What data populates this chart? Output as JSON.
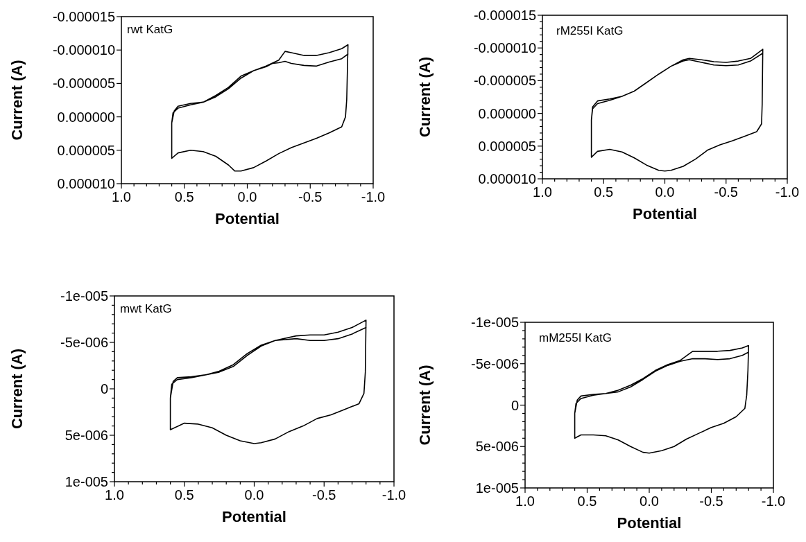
{
  "chart_data": [
    {
      "type": "line",
      "xlabel": "Potential",
      "ylabel": "Current (A)",
      "annotations": [
        "rwt KatG"
      ],
      "xlim": [
        1.0,
        -1.0
      ],
      "ylim": [
        1e-05,
        -1.5e-05
      ],
      "xticks": [
        {
          "value": 1.0,
          "label": "1.0"
        },
        {
          "value": 0.9,
          "label": null
        },
        {
          "value": 0.8,
          "label": null
        },
        {
          "value": 0.7,
          "label": null
        },
        {
          "value": 0.6,
          "label": null
        },
        {
          "value": 0.5,
          "label": "0.5"
        },
        {
          "value": 0.4,
          "label": null
        },
        {
          "value": 0.3,
          "label": null
        },
        {
          "value": 0.2,
          "label": null
        },
        {
          "value": 0.1,
          "label": null
        },
        {
          "value": 0.0,
          "label": "0.0"
        },
        {
          "value": -0.1,
          "label": null
        },
        {
          "value": -0.2,
          "label": null
        },
        {
          "value": -0.3,
          "label": null
        },
        {
          "value": -0.4,
          "label": null
        },
        {
          "value": -0.5,
          "label": "-0.5"
        },
        {
          "value": -0.6,
          "label": null
        },
        {
          "value": -0.7,
          "label": null
        },
        {
          "value": -0.8,
          "label": null
        },
        {
          "value": -0.9,
          "label": null
        },
        {
          "value": -1.0,
          "label": "-1.0"
        }
      ],
      "yticks": [
        {
          "value": -1.5e-05,
          "label": "-0.000015"
        },
        {
          "value": -1e-05,
          "label": "-0.000010"
        },
        {
          "value": -5e-06,
          "label": "-0.000005"
        },
        {
          "value": 0,
          "label": "0.000000"
        },
        {
          "value": 5e-06,
          "label": "0.000005"
        },
        {
          "value": 1e-05,
          "label": "0.000010"
        }
      ],
      "series": [
        {
          "color": "#000000",
          "x": [
            0.6,
            0.59,
            0.55,
            0.45,
            0.35,
            0.25,
            0.15,
            0.05,
            -0.05,
            -0.15,
            -0.25,
            -0.3,
            -0.35,
            -0.45,
            -0.55,
            -0.65,
            -0.75,
            -0.8,
            -0.79,
            -0.78,
            -0.75,
            -0.65,
            -0.55,
            -0.45,
            -0.35,
            -0.25,
            -0.15,
            -0.05,
            0.05,
            0.1,
            0.15,
            0.25,
            0.35,
            0.45,
            0.55,
            0.6,
            0.6,
            0.58,
            0.55,
            0.45,
            0.35,
            0.25,
            0.15,
            0.05,
            -0.05,
            -0.15,
            -0.2,
            -0.25,
            -0.3,
            -0.35,
            -0.45,
            -0.55,
            -0.65,
            -0.75,
            -0.8
          ],
          "values": [
            9e-07,
            -6e-07,
            -1.3e-06,
            -1.8e-06,
            -2.2e-06,
            -3.2e-06,
            -4.4e-06,
            -6.1e-06,
            -6.9e-06,
            -7.6e-06,
            -8.5e-06,
            -9.8e-06,
            -9.6e-06,
            -9.2e-06,
            -9.2e-06,
            -9.6e-06,
            -1.02e-05,
            -1.08e-05,
            -2.6e-06,
            0,
            1.5e-06,
            2.4e-06,
            3.2e-06,
            3.9e-06,
            4.6e-06,
            5.5e-06,
            6.6e-06,
            7.6e-06,
            8.1e-06,
            8.1e-06,
            7.2e-06,
            5.9e-06,
            5.2e-06,
            5e-06,
            5.4e-06,
            6.2e-06,
            9e-07,
            -9e-07,
            -1.6e-06,
            -2e-06,
            -2.2e-06,
            -3e-06,
            -4.2e-06,
            -5.8e-06,
            -6.9e-06,
            -7.5e-06,
            -8e-06,
            -8.1e-06,
            -8.3e-06,
            -8e-06,
            -7.7e-06,
            -7.6e-06,
            -8.2e-06,
            -8.7e-06,
            -9.4e-06
          ]
        }
      ]
    },
    {
      "type": "line",
      "xlabel": "Potential",
      "ylabel": "Current (A)",
      "annotations": [
        "rM255I KatG"
      ],
      "xlim": [
        1.0,
        -1.0
      ],
      "ylim": [
        1e-05,
        -1.5e-05
      ],
      "xticks": [
        {
          "value": 1.0,
          "label": "1.0"
        },
        {
          "value": 0.9,
          "label": null
        },
        {
          "value": 0.8,
          "label": null
        },
        {
          "value": 0.7,
          "label": null
        },
        {
          "value": 0.6,
          "label": null
        },
        {
          "value": 0.5,
          "label": "0.5"
        },
        {
          "value": 0.4,
          "label": null
        },
        {
          "value": 0.3,
          "label": null
        },
        {
          "value": 0.2,
          "label": null
        },
        {
          "value": 0.1,
          "label": null
        },
        {
          "value": 0.0,
          "label": "0.0"
        },
        {
          "value": -0.1,
          "label": null
        },
        {
          "value": -0.2,
          "label": null
        },
        {
          "value": -0.3,
          "label": null
        },
        {
          "value": -0.4,
          "label": null
        },
        {
          "value": -0.5,
          "label": "-0.5"
        },
        {
          "value": -0.6,
          "label": null
        },
        {
          "value": -0.7,
          "label": null
        },
        {
          "value": -0.8,
          "label": null
        },
        {
          "value": -0.9,
          "label": null
        },
        {
          "value": -1.0,
          "label": "-1.0"
        }
      ],
      "yticks": [
        {
          "value": -1.5e-05,
          "label": "-0.000015"
        },
        {
          "value": -1.4e-05,
          "label": null
        },
        {
          "value": -1.3e-05,
          "label": null
        },
        {
          "value": -1.2e-05,
          "label": null
        },
        {
          "value": -1.1e-05,
          "label": null
        },
        {
          "value": -1e-05,
          "label": "-0.000010"
        },
        {
          "value": -9e-06,
          "label": null
        },
        {
          "value": -8e-06,
          "label": null
        },
        {
          "value": -7e-06,
          "label": null
        },
        {
          "value": -6e-06,
          "label": null
        },
        {
          "value": -5e-06,
          "label": "-0.000005"
        },
        {
          "value": -4e-06,
          "label": null
        },
        {
          "value": -3e-06,
          "label": null
        },
        {
          "value": -2e-06,
          "label": null
        },
        {
          "value": -1e-06,
          "label": null
        },
        {
          "value": 0,
          "label": "0.000000"
        },
        {
          "value": 1e-06,
          "label": null
        },
        {
          "value": 2e-06,
          "label": null
        },
        {
          "value": 3e-06,
          "label": null
        },
        {
          "value": 4e-06,
          "label": null
        },
        {
          "value": 5e-06,
          "label": "0.000005"
        },
        {
          "value": 6e-06,
          "label": null
        },
        {
          "value": 7e-06,
          "label": null
        },
        {
          "value": 8e-06,
          "label": null
        },
        {
          "value": 9e-06,
          "label": null
        },
        {
          "value": 1e-05,
          "label": "0.000010"
        }
      ],
      "series": [
        {
          "color": "#000000",
          "x": [
            0.6,
            0.59,
            0.55,
            0.45,
            0.35,
            0.25,
            0.15,
            0.05,
            -0.05,
            -0.15,
            -0.2,
            -0.3,
            -0.4,
            -0.5,
            -0.6,
            -0.7,
            -0.8,
            -0.795,
            -0.79,
            -0.75,
            -0.65,
            -0.55,
            -0.45,
            -0.35,
            -0.25,
            -0.15,
            -0.05,
            0.0,
            0.05,
            0.15,
            0.25,
            0.35,
            0.45,
            0.55,
            0.6,
            0.6,
            0.59,
            0.55,
            0.45,
            0.35,
            0.25,
            0.15,
            0.05,
            -0.05,
            -0.15,
            -0.2,
            -0.3,
            -0.4,
            -0.5,
            -0.6,
            -0.7,
            -0.8
          ],
          "values": [
            1e-06,
            -1e-06,
            -1.9e-06,
            -2.2e-06,
            -2.6e-06,
            -3.4e-06,
            -4.7e-06,
            -6e-06,
            -7.2e-06,
            -8.2e-06,
            -8.4e-06,
            -8.2e-06,
            -7.9e-06,
            -7.8e-06,
            -8e-06,
            -8.4e-06,
            -9.8e-06,
            -1.4e-06,
            1.6e-06,
            2.8e-06,
            3.5e-06,
            4.2e-06,
            4.8e-06,
            5.6e-06,
            7e-06,
            8.1e-06,
            8.7e-06,
            8.8e-06,
            8.7e-06,
            7.9e-06,
            6.8e-06,
            5.9e-06,
            5.5e-06,
            5.8e-06,
            6.7e-06,
            1e-06,
            -7e-07,
            -1.5e-06,
            -2e-06,
            -2.6e-06,
            -3.4e-06,
            -4.7e-06,
            -6e-06,
            -7.2e-06,
            -8e-06,
            -8.2e-06,
            -7.8e-06,
            -7.4e-06,
            -7.3e-06,
            -7.4e-06,
            -8e-06,
            -9.2e-06
          ]
        }
      ]
    },
    {
      "type": "line",
      "xlabel": "Potential",
      "ylabel": "Current (A)",
      "annotations": [
        "mwt KatG"
      ],
      "xlim": [
        1.0,
        -1.0
      ],
      "ylim": [
        1e-05,
        -1e-05
      ],
      "xticks": [
        {
          "value": 1.0,
          "label": "1.0"
        },
        {
          "value": 0.9,
          "label": null
        },
        {
          "value": 0.8,
          "label": null
        },
        {
          "value": 0.7,
          "label": null
        },
        {
          "value": 0.6,
          "label": null
        },
        {
          "value": 0.5,
          "label": "0.5"
        },
        {
          "value": 0.4,
          "label": null
        },
        {
          "value": 0.3,
          "label": null
        },
        {
          "value": 0.2,
          "label": null
        },
        {
          "value": 0.1,
          "label": null
        },
        {
          "value": 0.0,
          "label": "0.0"
        },
        {
          "value": -0.1,
          "label": null
        },
        {
          "value": -0.2,
          "label": null
        },
        {
          "value": -0.3,
          "label": null
        },
        {
          "value": -0.4,
          "label": null
        },
        {
          "value": -0.5,
          "label": "-0.5"
        },
        {
          "value": -0.6,
          "label": null
        },
        {
          "value": -0.7,
          "label": null
        },
        {
          "value": -0.8,
          "label": null
        },
        {
          "value": -0.9,
          "label": null
        },
        {
          "value": -1.0,
          "label": "-1.0"
        }
      ],
      "yticks": [
        {
          "value": -1e-05,
          "label": "-1e-005"
        },
        {
          "value": -9e-06,
          "label": null
        },
        {
          "value": -8e-06,
          "label": null
        },
        {
          "value": -7e-06,
          "label": null
        },
        {
          "value": -6e-06,
          "label": null
        },
        {
          "value": -5e-06,
          "label": "-5e-006"
        },
        {
          "value": -4e-06,
          "label": null
        },
        {
          "value": -3e-06,
          "label": null
        },
        {
          "value": -2e-06,
          "label": null
        },
        {
          "value": -1e-06,
          "label": null
        },
        {
          "value": 0,
          "label": "0"
        },
        {
          "value": 1e-06,
          "label": null
        },
        {
          "value": 2e-06,
          "label": null
        },
        {
          "value": 3e-06,
          "label": null
        },
        {
          "value": 4e-06,
          "label": null
        },
        {
          "value": 5e-06,
          "label": "5e-006"
        },
        {
          "value": 6e-06,
          "label": null
        },
        {
          "value": 7e-06,
          "label": null
        },
        {
          "value": 8e-06,
          "label": null
        },
        {
          "value": 9e-06,
          "label": null
        },
        {
          "value": 1e-05,
          "label": "1e-005"
        }
      ],
      "series": [
        {
          "color": "#000000",
          "x": [
            0.6,
            0.59,
            0.55,
            0.45,
            0.35,
            0.25,
            0.15,
            0.05,
            -0.05,
            -0.15,
            -0.3,
            -0.4,
            -0.5,
            -0.6,
            -0.7,
            -0.8,
            -0.795,
            -0.785,
            -0.75,
            -0.65,
            -0.55,
            -0.45,
            -0.35,
            -0.25,
            -0.15,
            -0.05,
            0.0,
            0.1,
            0.2,
            0.3,
            0.4,
            0.5,
            0.6,
            0.6,
            0.58,
            0.55,
            0.45,
            0.35,
            0.25,
            0.15,
            0.05,
            -0.05,
            -0.15,
            -0.3,
            -0.4,
            -0.5,
            -0.6,
            -0.7,
            -0.8
          ],
          "values": [
            1e-06,
            -5e-07,
            -1e-06,
            -1.2e-06,
            -1.5e-06,
            -1.9e-06,
            -2.6e-06,
            -3.8e-06,
            -4.7e-06,
            -5.2e-06,
            -5.7e-06,
            -5.8e-06,
            -5.8e-06,
            -6.1e-06,
            -6.6e-06,
            -7.4e-06,
            -1.8e-06,
            5e-07,
            1.6e-06,
            2.2e-06,
            2.8e-06,
            3.2e-06,
            4e-06,
            4.6e-06,
            5.4e-06,
            5.8e-06,
            5.9e-06,
            5.6e-06,
            5e-06,
            4.2e-06,
            3.8e-06,
            3.7e-06,
            4.4e-06,
            1e-06,
            -8e-07,
            -1.2e-06,
            -1.3e-06,
            -1.5e-06,
            -1.8e-06,
            -2.4e-06,
            -3.6e-06,
            -4.6e-06,
            -5.2e-06,
            -5.4e-06,
            -5.2e-06,
            -5.2e-06,
            -5.4e-06,
            -5.9e-06,
            -6.6e-06
          ]
        }
      ]
    },
    {
      "type": "line",
      "xlabel": "Potential",
      "ylabel": "Current (A)",
      "annotations": [
        "mM255I KatG"
      ],
      "xlim": [
        1.0,
        -1.0
      ],
      "ylim": [
        1e-05,
        -1e-05
      ],
      "xticks": [
        {
          "value": 1.0,
          "label": "1.0"
        },
        {
          "value": 0.9,
          "label": null
        },
        {
          "value": 0.8,
          "label": null
        },
        {
          "value": 0.7,
          "label": null
        },
        {
          "value": 0.6,
          "label": null
        },
        {
          "value": 0.5,
          "label": "0.5"
        },
        {
          "value": 0.4,
          "label": null
        },
        {
          "value": 0.3,
          "label": null
        },
        {
          "value": 0.2,
          "label": null
        },
        {
          "value": 0.1,
          "label": null
        },
        {
          "value": 0.0,
          "label": "0.0"
        },
        {
          "value": -0.1,
          "label": null
        },
        {
          "value": -0.2,
          "label": null
        },
        {
          "value": -0.3,
          "label": null
        },
        {
          "value": -0.4,
          "label": null
        },
        {
          "value": -0.5,
          "label": "-0.5"
        },
        {
          "value": -0.6,
          "label": null
        },
        {
          "value": -0.7,
          "label": null
        },
        {
          "value": -0.8,
          "label": null
        },
        {
          "value": -0.9,
          "label": null
        },
        {
          "value": -1.0,
          "label": "-1.0"
        }
      ],
      "yticks": [
        {
          "value": -1e-05,
          "label": "-1e-005"
        },
        {
          "value": -9e-06,
          "label": null
        },
        {
          "value": -8e-06,
          "label": null
        },
        {
          "value": -7e-06,
          "label": null
        },
        {
          "value": -6e-06,
          "label": null
        },
        {
          "value": -5e-06,
          "label": "-5e-006"
        },
        {
          "value": -4e-06,
          "label": null
        },
        {
          "value": -3e-06,
          "label": null
        },
        {
          "value": -2e-06,
          "label": null
        },
        {
          "value": -1e-06,
          "label": null
        },
        {
          "value": 0,
          "label": "0"
        },
        {
          "value": 1e-06,
          "label": null
        },
        {
          "value": 2e-06,
          "label": null
        },
        {
          "value": 3e-06,
          "label": null
        },
        {
          "value": 4e-06,
          "label": null
        },
        {
          "value": 5e-06,
          "label": "5e-006"
        },
        {
          "value": 6e-06,
          "label": null
        },
        {
          "value": 7e-06,
          "label": null
        },
        {
          "value": 8e-06,
          "label": null
        },
        {
          "value": 9e-06,
          "label": null
        },
        {
          "value": 1e-05,
          "label": "1e-005"
        }
      ],
      "series": [
        {
          "color": "#000000",
          "x": [
            0.6,
            0.59,
            0.55,
            0.45,
            0.35,
            0.25,
            0.15,
            0.05,
            -0.05,
            -0.15,
            -0.25,
            -0.35,
            -0.45,
            -0.55,
            -0.65,
            -0.75,
            -0.8,
            -0.795,
            -0.785,
            -0.77,
            -0.7,
            -0.6,
            -0.5,
            -0.4,
            -0.3,
            -0.2,
            -0.1,
            0.0,
            0.05,
            0.15,
            0.25,
            0.35,
            0.45,
            0.55,
            0.6,
            0.6,
            0.58,
            0.55,
            0.45,
            0.35,
            0.25,
            0.15,
            0.05,
            -0.05,
            -0.15,
            -0.25,
            -0.35,
            -0.45,
            -0.55,
            -0.65,
            -0.75,
            -0.8
          ],
          "values": [
            1e-06,
            -2e-07,
            -8e-07,
            -1.2e-06,
            -1.4e-06,
            -1.8e-06,
            -2.4e-06,
            -3.2e-06,
            -4.2e-06,
            -4.9e-06,
            -5.4e-06,
            -6.5e-06,
            -6.5e-06,
            -6.5e-06,
            -6.6e-06,
            -6.9e-06,
            -7.2e-06,
            -4.2e-06,
            -1.2e-06,
            4e-07,
            1.4e-06,
            2.2e-06,
            2.7e-06,
            3.4e-06,
            4.1e-06,
            5e-06,
            5.5e-06,
            5.8e-06,
            5.7e-06,
            5e-06,
            4.2e-06,
            3.7e-06,
            3.6e-06,
            3.6e-06,
            4e-06,
            1e-06,
            -6e-07,
            -1.1e-06,
            -1.3e-06,
            -1.4e-06,
            -1.6e-06,
            -2.2e-06,
            -3.1e-06,
            -4.1e-06,
            -4.8e-06,
            -5.3e-06,
            -5.6e-06,
            -5.6e-06,
            -5.5e-06,
            -5.6e-06,
            -6e-06,
            -6.4e-06
          ]
        }
      ]
    }
  ]
}
